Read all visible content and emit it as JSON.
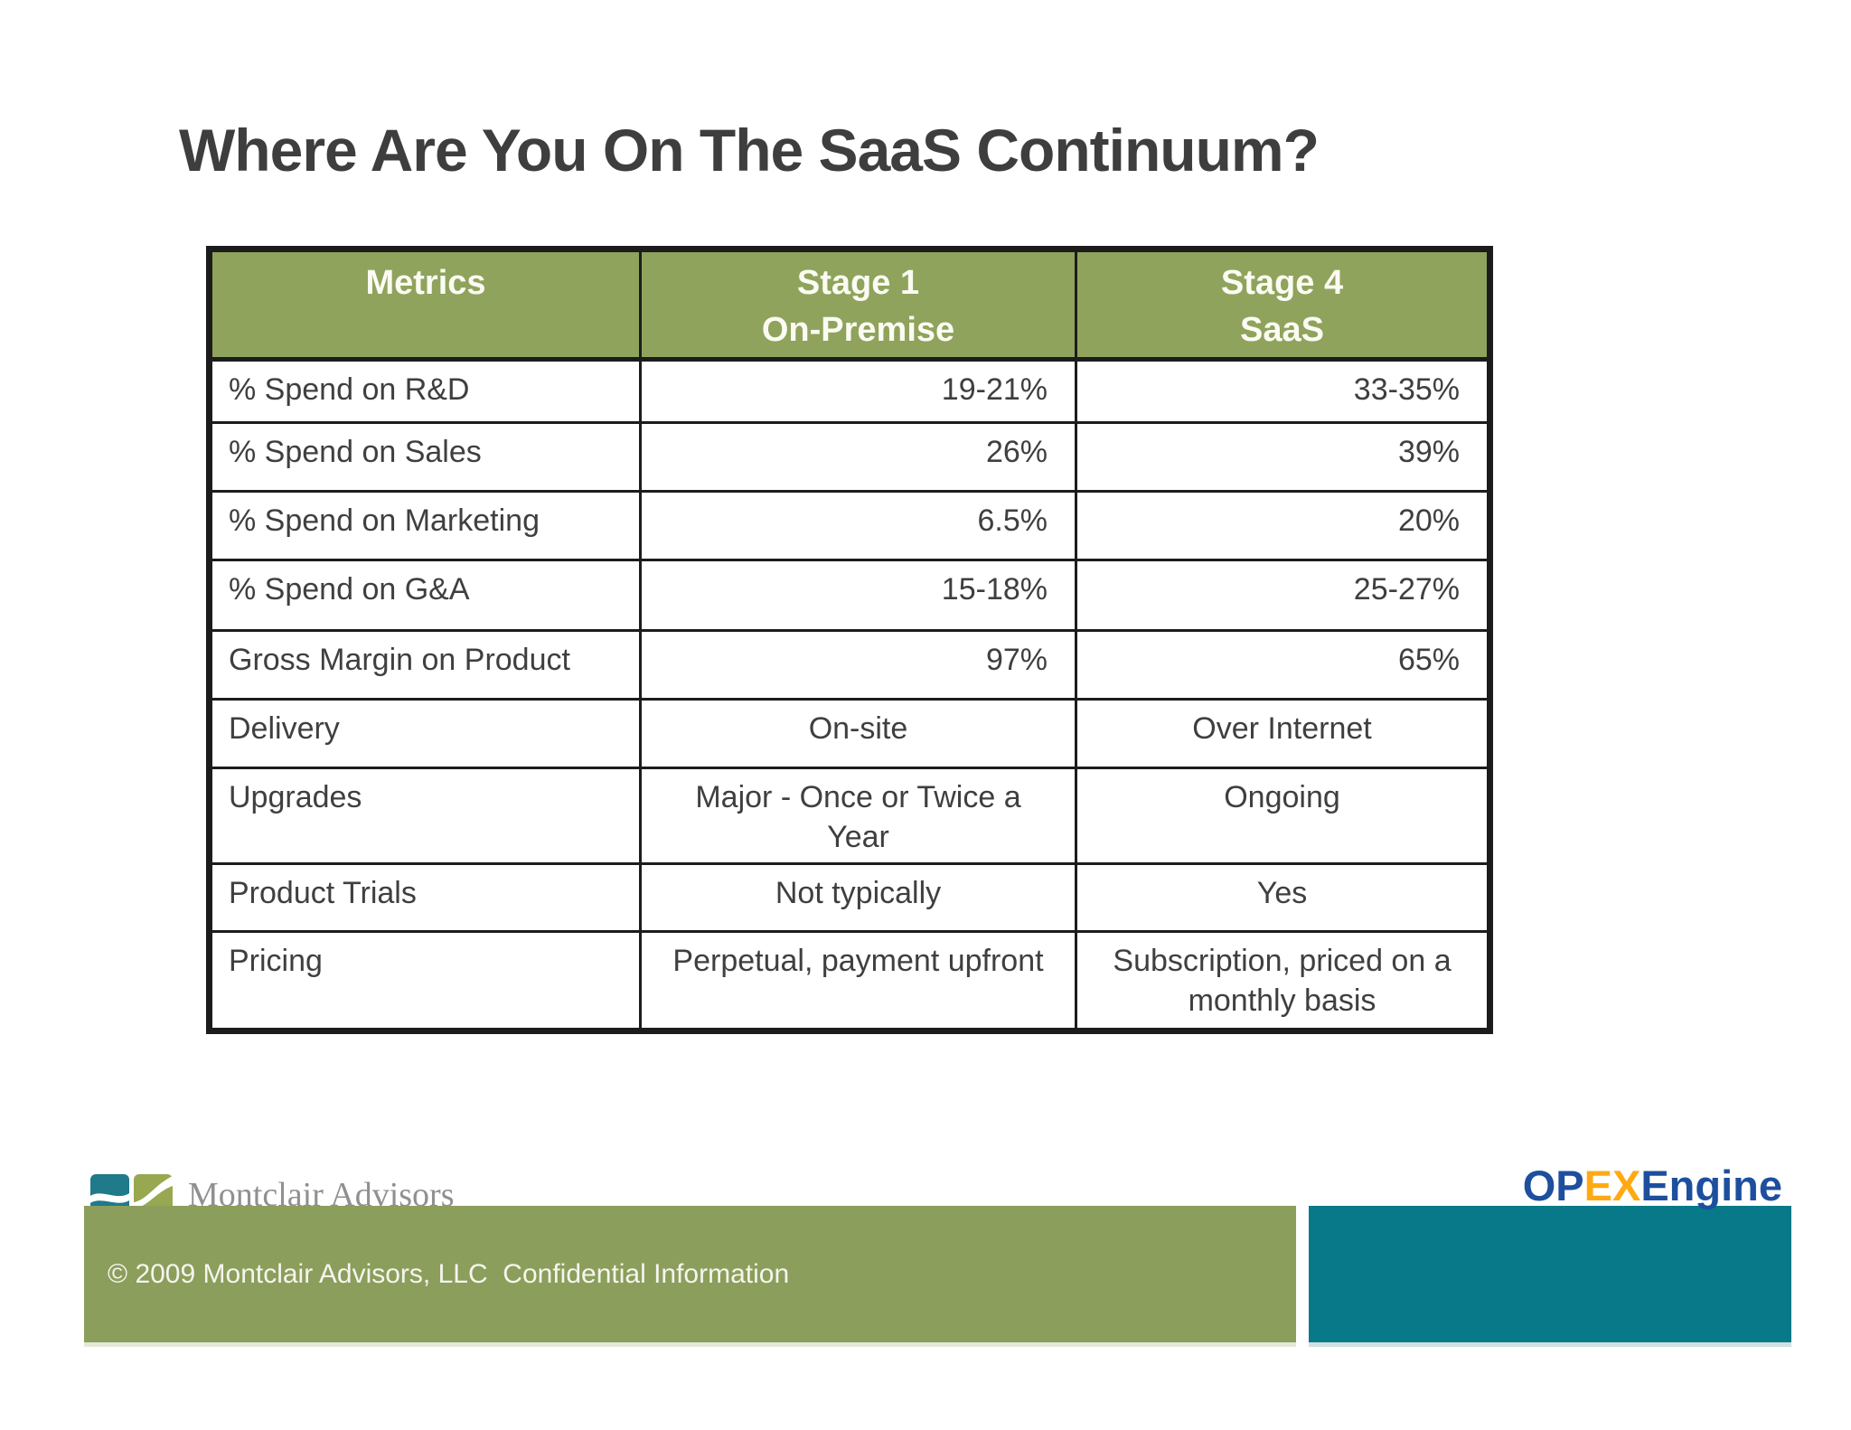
{
  "slide": {
    "title": "Where Are You On The SaaS Continuum?"
  },
  "table": {
    "columns": [
      {
        "lines": [
          "Metrics",
          ""
        ]
      },
      {
        "lines": [
          "Stage 1",
          "On-Premise"
        ]
      },
      {
        "lines": [
          "Stage 4",
          "SaaS"
        ]
      }
    ],
    "rows": [
      {
        "metric": "% Spend on R&D",
        "stage1": "19-21%",
        "stage4": "33-35%",
        "align": "right"
      },
      {
        "metric": "% Spend on Sales",
        "stage1": "26%",
        "stage4": "39%",
        "align": "right"
      },
      {
        "metric": "% Spend on Marketing",
        "stage1": "6.5%",
        "stage4": "20%",
        "align": "right"
      },
      {
        "metric": "% Spend on G&A",
        "stage1": "15-18%",
        "stage4": "25-27%",
        "align": "right"
      },
      {
        "metric": "Gross Margin on Product",
        "stage1": "97%",
        "stage4": "65%",
        "align": "right"
      },
      {
        "metric": "Delivery",
        "stage1": "On-site",
        "stage4": "Over Internet",
        "align": "center"
      },
      {
        "metric": "Upgrades",
        "stage1": "Major - Once or Twice a Year",
        "stage4": "Ongoing",
        "align": "center"
      },
      {
        "metric": "Product Trials",
        "stage1": "Not typically",
        "stage4": "Yes",
        "align": "center"
      },
      {
        "metric": "Pricing",
        "stage1": "Perpetual, payment upfront",
        "stage4": "Subscription, priced on a monthly basis",
        "align": "center"
      }
    ]
  },
  "chart_data": {
    "type": "table",
    "title": "Where Are You On The SaaS Continuum?",
    "columns": [
      "Metrics",
      "Stage 1 On-Premise",
      "Stage 4 SaaS"
    ],
    "rows": [
      [
        "% Spend on R&D",
        "19-21%",
        "33-35%"
      ],
      [
        "% Spend on Sales",
        "26%",
        "39%"
      ],
      [
        "% Spend on Marketing",
        "6.5%",
        "20%"
      ],
      [
        "% Spend on G&A",
        "15-18%",
        "25-27%"
      ],
      [
        "Gross Margin on Product",
        "97%",
        "65%"
      ],
      [
        "Delivery",
        "On-site",
        "Over Internet"
      ],
      [
        "Upgrades",
        "Major - Once or Twice a Year",
        "Ongoing"
      ],
      [
        "Product Trials",
        "Not typically",
        "Yes"
      ],
      [
        "Pricing",
        "Perpetual, payment upfront",
        "Subscription, priced on a monthly basis"
      ]
    ]
  },
  "footer": {
    "montclair_logo_text": "Montclair Advisors",
    "copyright": "© 2009 Montclair Advisors, LLC  Confidential Information",
    "opex": {
      "part1": "OP",
      "part2": "EX",
      "part3": "Engine"
    }
  },
  "colors": {
    "table_header_green": "#8fa35c",
    "footer_green": "#8c9e5b",
    "footer_teal": "#077989",
    "montclair_logo_teal": "#1f7a8a",
    "montclair_logo_olive": "#98a851",
    "opex_blue": "#1d4f9e",
    "opex_orange": "#ffaa13",
    "title_text": "#3e3e3e",
    "body_text": "#3f3f3f"
  }
}
